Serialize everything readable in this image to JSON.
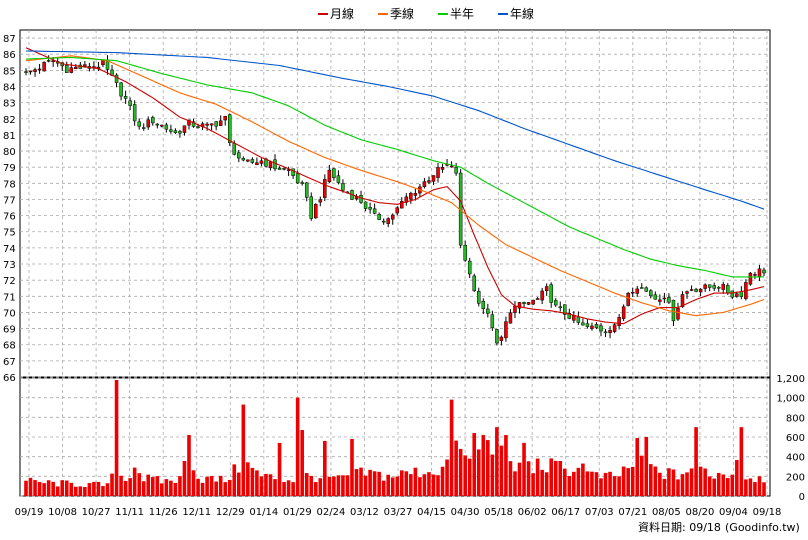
{
  "legend": [
    {
      "label": "月線",
      "color": "#cc0000"
    },
    {
      "label": "季線",
      "color": "#ff6600"
    },
    {
      "label": "半年",
      "color": "#00cc00"
    },
    {
      "label": "年線",
      "color": "#0055cc"
    }
  ],
  "footer": {
    "date_label": "資料日期: 09/18",
    "source": "(Goodinfo.tw)"
  },
  "chart_data": [
    {
      "type": "candlestick",
      "title": "",
      "ylim": [
        66,
        87.5
      ],
      "y_ticks": [
        66,
        67,
        68,
        69,
        70,
        71,
        72,
        73,
        74,
        75,
        76,
        77,
        78,
        79,
        80,
        81,
        82,
        83,
        84,
        85,
        86,
        87
      ],
      "x_labels": [
        "09/19",
        "10/08",
        "10/27",
        "11/11",
        "11/26",
        "12/11",
        "12/29",
        "01/14",
        "01/29",
        "02/24",
        "03/12",
        "03/27",
        "04/15",
        "04/30",
        "05/18",
        "06/02",
        "06/17",
        "07/03",
        "07/21",
        "08/05",
        "08/20",
        "09/04",
        "09/18"
      ],
      "grid": true,
      "price_path": [
        [
          0,
          84.8
        ],
        [
          6,
          85.6
        ],
        [
          9,
          85.1
        ],
        [
          14,
          85.2
        ],
        [
          17,
          85.4
        ],
        [
          19,
          84.5
        ],
        [
          22,
          83.2
        ],
        [
          25,
          81.4
        ],
        [
          28,
          81.9
        ],
        [
          33,
          81.1
        ],
        [
          36,
          81.7
        ],
        [
          40,
          81.5
        ],
        [
          44,
          82.0
        ],
        [
          45,
          80.4
        ],
        [
          48,
          79.2
        ],
        [
          52,
          79.4
        ],
        [
          55,
          79.0
        ],
        [
          58,
          78.8
        ],
        [
          61,
          77.8
        ],
        [
          63,
          76.0
        ],
        [
          65,
          77.2
        ],
        [
          67,
          78.8
        ],
        [
          70,
          77.6
        ],
        [
          74,
          76.9
        ],
        [
          77,
          75.9
        ],
        [
          80,
          75.8
        ],
        [
          82,
          76.4
        ],
        [
          84,
          77.1
        ],
        [
          87,
          77.8
        ],
        [
          90,
          78.6
        ],
        [
          93,
          79.1
        ],
        [
          95,
          78.7
        ],
        [
          96,
          74.0
        ],
        [
          98,
          72.5
        ],
        [
          99,
          71.3
        ],
        [
          101,
          70.3
        ],
        [
          103,
          69.2
        ],
        [
          104,
          67.9
        ],
        [
          105,
          68.4
        ],
        [
          107,
          70.2
        ],
        [
          110,
          70.5
        ],
        [
          113,
          70.8
        ],
        [
          115,
          71.4
        ],
        [
          117,
          70.3
        ],
        [
          120,
          69.8
        ],
        [
          123,
          69.1
        ],
        [
          126,
          69.0
        ],
        [
          128,
          68.9
        ],
        [
          131,
          69.5
        ],
        [
          133,
          71.3
        ],
        [
          135,
          71.7
        ],
        [
          137,
          71.3
        ],
        [
          139,
          70.9
        ],
        [
          141,
          71.1
        ],
        [
          143,
          69.7
        ],
        [
          145,
          71.1
        ],
        [
          147,
          71.5
        ],
        [
          150,
          71.5
        ],
        [
          153,
          71.7
        ],
        [
          156,
          71.1
        ],
        [
          158,
          71.2
        ],
        [
          160,
          72.5
        ],
        [
          163,
          72.6
        ]
      ],
      "series": [
        {
          "name": "月線",
          "color": "#cc0000",
          "points": [
            [
              0,
              86.4
            ],
            [
              8,
              85.4
            ],
            [
              16,
              85.1
            ],
            [
              22,
              84.3
            ],
            [
              28,
              83.3
            ],
            [
              34,
              82.1
            ],
            [
              40,
              81.4
            ],
            [
              46,
              80.5
            ],
            [
              52,
              79.6
            ],
            [
              58,
              78.9
            ],
            [
              62,
              78.4
            ],
            [
              66,
              77.9
            ],
            [
              70,
              77.5
            ],
            [
              74,
              77.1
            ],
            [
              78,
              76.8
            ],
            [
              82,
              76.7
            ],
            [
              86,
              77.0
            ],
            [
              90,
              77.6
            ],
            [
              93,
              77.8
            ],
            [
              96,
              76.9
            ],
            [
              99,
              74.8
            ],
            [
              102,
              72.8
            ],
            [
              105,
              71.1
            ],
            [
              108,
              70.4
            ],
            [
              112,
              70.2
            ],
            [
              116,
              70.1
            ],
            [
              120,
              69.9
            ],
            [
              124,
              69.6
            ],
            [
              128,
              69.4
            ],
            [
              132,
              69.3
            ],
            [
              136,
              69.9
            ],
            [
              140,
              70.3
            ],
            [
              144,
              70.3
            ],
            [
              148,
              70.8
            ],
            [
              152,
              71.2
            ],
            [
              156,
              71.2
            ],
            [
              160,
              71.4
            ],
            [
              163,
              71.6
            ]
          ]
        },
        {
          "name": "季線",
          "color": "#ff6600",
          "points": [
            [
              0,
              85.6
            ],
            [
              10,
              85.9
            ],
            [
              18,
              85.6
            ],
            [
              26,
              84.6
            ],
            [
              34,
              83.6
            ],
            [
              42,
              82.9
            ],
            [
              50,
              81.8
            ],
            [
              58,
              80.6
            ],
            [
              66,
              79.6
            ],
            [
              74,
              78.8
            ],
            [
              82,
              78.1
            ],
            [
              88,
              77.5
            ],
            [
              94,
              76.8
            ],
            [
              100,
              75.4
            ],
            [
              106,
              74.2
            ],
            [
              112,
              73.4
            ],
            [
              118,
              72.6
            ],
            [
              124,
              71.9
            ],
            [
              130,
              71.2
            ],
            [
              136,
              70.6
            ],
            [
              142,
              70.1
            ],
            [
              148,
              69.8
            ],
            [
              154,
              70.0
            ],
            [
              160,
              70.5
            ],
            [
              163,
              70.8
            ]
          ]
        },
        {
          "name": "半年",
          "color": "#00cc00",
          "points": [
            [
              0,
              85.7
            ],
            [
              10,
              85.8
            ],
            [
              20,
              85.6
            ],
            [
              30,
              84.8
            ],
            [
              40,
              84.1
            ],
            [
              50,
              83.6
            ],
            [
              58,
              82.8
            ],
            [
              66,
              81.6
            ],
            [
              74,
              80.7
            ],
            [
              82,
              80.1
            ],
            [
              90,
              79.4
            ],
            [
              96,
              79.0
            ],
            [
              102,
              78.0
            ],
            [
              108,
              77.1
            ],
            [
              114,
              76.2
            ],
            [
              120,
              75.3
            ],
            [
              126,
              74.6
            ],
            [
              132,
              73.9
            ],
            [
              138,
              73.3
            ],
            [
              144,
              72.9
            ],
            [
              150,
              72.6
            ],
            [
              156,
              72.2
            ],
            [
              163,
              72.2
            ]
          ]
        },
        {
          "name": "年線",
          "color": "#0055cc",
          "points": [
            [
              0,
              86.2
            ],
            [
              20,
              86.1
            ],
            [
              40,
              85.8
            ],
            [
              56,
              85.3
            ],
            [
              70,
              84.5
            ],
            [
              80,
              84.0
            ],
            [
              90,
              83.4
            ],
            [
              100,
              82.5
            ],
            [
              110,
              81.4
            ],
            [
              120,
              80.4
            ],
            [
              130,
              79.4
            ],
            [
              140,
              78.5
            ],
            [
              150,
              77.6
            ],
            [
              158,
              76.9
            ],
            [
              163,
              76.4
            ]
          ]
        }
      ]
    },
    {
      "type": "bar",
      "title": "",
      "ylim": [
        0,
        1200
      ],
      "y_ticks": [
        0,
        200,
        400,
        600,
        800,
        1000,
        1200
      ],
      "y_tick_labels": [
        "0",
        "200",
        "400",
        "600",
        "800",
        "1,000",
        "1,200"
      ],
      "volume_path": [
        [
          0,
          150
        ],
        [
          6,
          130
        ],
        [
          12,
          120
        ],
        [
          18,
          110
        ],
        [
          20,
          250
        ],
        [
          22,
          160
        ],
        [
          24,
          320
        ],
        [
          26,
          180
        ],
        [
          30,
          150
        ],
        [
          34,
          170
        ],
        [
          36,
          490
        ],
        [
          38,
          180
        ],
        [
          44,
          160
        ],
        [
          48,
          340
        ],
        [
          52,
          200
        ],
        [
          56,
          180
        ],
        [
          60,
          150
        ],
        [
          60,
          1000
        ],
        [
          62,
          200
        ],
        [
          66,
          190
        ],
        [
          70,
          170
        ],
        [
          72,
          220
        ],
        [
          76,
          230
        ],
        [
          80,
          200
        ],
        [
          84,
          230
        ],
        [
          88,
          250
        ],
        [
          92,
          270
        ],
        [
          94,
          460
        ],
        [
          95,
          680
        ],
        [
          96,
          420
        ],
        [
          98,
          340
        ],
        [
          100,
          420
        ],
        [
          102,
          500
        ],
        [
          104,
          460
        ],
        [
          106,
          400
        ],
        [
          108,
          280
        ],
        [
          110,
          300
        ],
        [
          114,
          310
        ],
        [
          118,
          290
        ],
        [
          122,
          260
        ],
        [
          126,
          200
        ],
        [
          130,
          190
        ],
        [
          134,
          320
        ],
        [
          136,
          380
        ],
        [
          138,
          280
        ],
        [
          140,
          240
        ],
        [
          144,
          210
        ],
        [
          148,
          300
        ],
        [
          152,
          220
        ],
        [
          156,
          230
        ],
        [
          158,
          600
        ],
        [
          159,
          200
        ],
        [
          163,
          180
        ]
      ],
      "volume_spikes": [
        [
          20,
          1180
        ],
        [
          36,
          620
        ],
        [
          48,
          930
        ],
        [
          56,
          540
        ],
        [
          60,
          1000
        ],
        [
          66,
          560
        ],
        [
          72,
          580
        ],
        [
          94,
          980
        ],
        [
          99,
          640
        ],
        [
          101,
          620
        ],
        [
          104,
          700
        ],
        [
          106,
          620
        ],
        [
          110,
          540
        ],
        [
          123,
          330
        ],
        [
          135,
          590
        ],
        [
          137,
          600
        ],
        [
          148,
          700
        ],
        [
          158,
          700
        ]
      ]
    }
  ]
}
